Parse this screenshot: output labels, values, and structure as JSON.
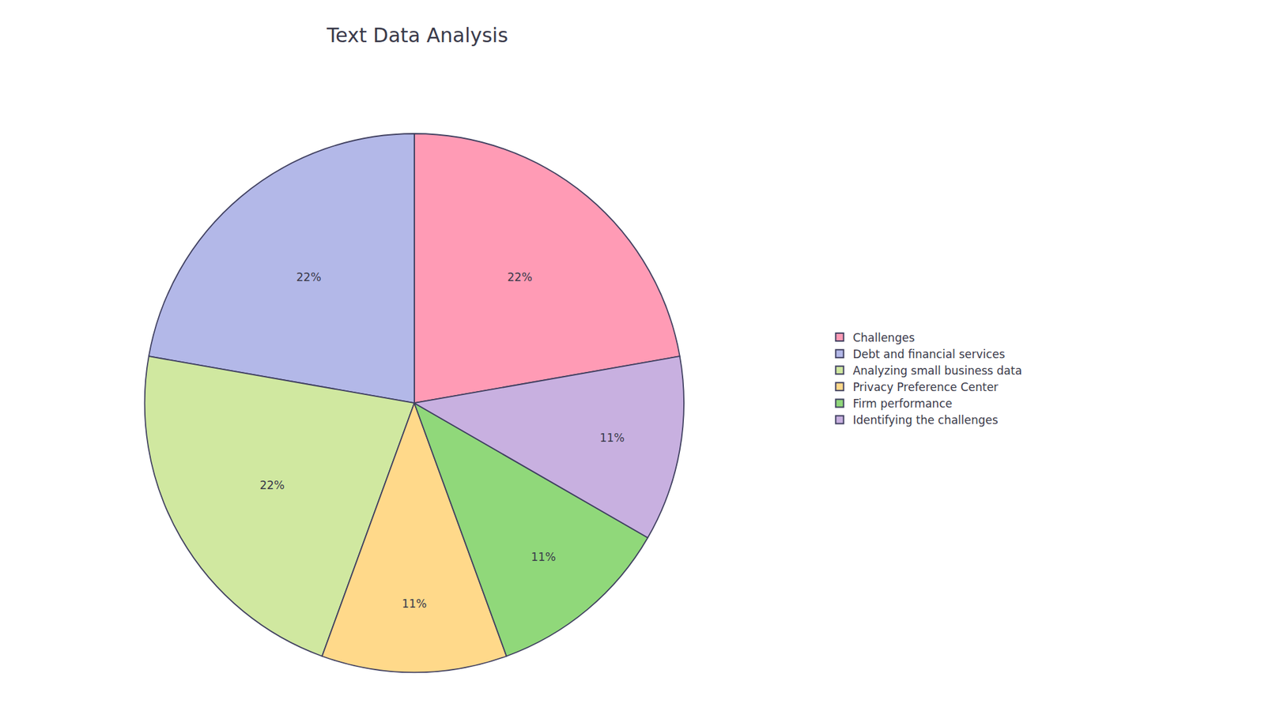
{
  "chart_data": {
    "type": "pie",
    "title": "Text Data Analysis",
    "categories": [
      "Challenges",
      "Debt and financial services",
      "Analyzing small business data",
      "Privacy Preference Center",
      "Firm performance",
      "Identifying the challenges"
    ],
    "values": [
      22,
      22,
      22,
      11,
      11,
      11
    ],
    "value_labels": [
      "22%",
      "22%",
      "22%",
      "11%",
      "11%",
      "11%"
    ],
    "colors": [
      "#FF9BB5",
      "#B3B8E8",
      "#D0E8A0",
      "#FFD98A",
      "#90D87A",
      "#C8B0E0"
    ],
    "data_labels": true,
    "legend": "right"
  }
}
